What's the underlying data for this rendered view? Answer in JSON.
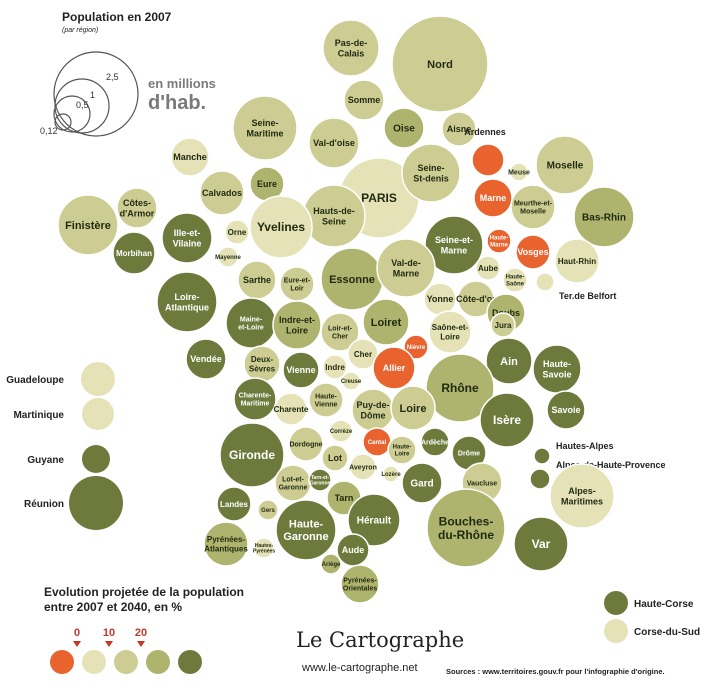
{
  "header": {
    "title": "Population en 2007",
    "subtitle": "(par région)"
  },
  "scale_legend": {
    "unit_line1": "en millions",
    "unit_line2": "d'hab.",
    "values": [
      "0,12",
      "0,5",
      "1",
      "2,5"
    ]
  },
  "evolution_legend": {
    "title_line1": "Evolution projetée de la population",
    "title_line2": "entre 2007 et 2040, en %",
    "ticks": [
      "0",
      "10",
      "20"
    ]
  },
  "corsica_legend": [
    "Haute-Corse",
    "Corse-du-Sud"
  ],
  "outre_mer": [
    "Guadeloupe",
    "Martinique",
    "Guyane",
    "Réunion"
  ],
  "logo": {
    "name": "Le Cartographe",
    "url": "www.le-cartographe.net"
  },
  "sources": "Sources : www.territoires.gouv.fr pour l'infographie d'origine.",
  "colors": {
    "decline": "#e8632e",
    "class1": "#e4e2b6",
    "class2": "#cdcc93",
    "class3": "#aeb36e",
    "class4": "#6e7a3c"
  },
  "departements": [
    {
      "label": "Pas-de-\nCalais",
      "class": "class2"
    },
    {
      "label": "Nord",
      "class": "class2"
    },
    {
      "label": "Somme",
      "class": "class2"
    },
    {
      "label": "Oise",
      "class": "class3"
    },
    {
      "label": "Aisne",
      "class": "class2"
    },
    {
      "label": "Ardennes",
      "class": "decline"
    },
    {
      "label": "Seine-\nMaritime",
      "class": "class2"
    },
    {
      "label": "Val-d'oise",
      "class": "class2"
    },
    {
      "label": "PARIS",
      "class": "class1"
    },
    {
      "label": "Seine-\nSt-denis",
      "class": "class2"
    },
    {
      "label": "Manche",
      "class": "class1"
    },
    {
      "label": "Calvados",
      "class": "class2"
    },
    {
      "label": "Eure",
      "class": "class3"
    },
    {
      "label": "Marne",
      "class": "decline"
    },
    {
      "label": "Meuse",
      "class": "class1"
    },
    {
      "label": "Moselle",
      "class": "class2"
    },
    {
      "label": "Meurthe-et-\nMoselle",
      "class": "class2"
    },
    {
      "label": "Bas-Rhin",
      "class": "class3"
    },
    {
      "label": "Côtes-\nd'Armor",
      "class": "class2"
    },
    {
      "label": "Finistère",
      "class": "class2"
    },
    {
      "label": "Hauts-de-\nSeine",
      "class": "class2"
    },
    {
      "label": "Yvelines",
      "class": "class1"
    },
    {
      "label": "Ille-et-\nVilaine",
      "class": "class4"
    },
    {
      "label": "Orne",
      "class": "class1"
    },
    {
      "label": "Morbihan",
      "class": "class4"
    },
    {
      "label": "Seine-et-\nMarne",
      "class": "class4"
    },
    {
      "label": "Haute-\nMarne",
      "class": "decline"
    },
    {
      "label": "Vosges",
      "class": "decline"
    },
    {
      "label": "Haut-Rhin",
      "class": "class1"
    },
    {
      "label": "Mayenne",
      "class": "class1"
    },
    {
      "label": "Essonne",
      "class": "class3"
    },
    {
      "label": "Val-de-\nMarne",
      "class": "class2"
    },
    {
      "label": "Aube",
      "class": "class1"
    },
    {
      "label": "Haute-\nSaône",
      "class": "class1"
    },
    {
      "label": "Sarthe",
      "class": "class2"
    },
    {
      "label": "Eure-et-\nLoir",
      "class": "class2"
    },
    {
      "label": "Ter.de Belfort",
      "class": "class1"
    },
    {
      "label": "Loire-\nAtlantique",
      "class": "class4"
    },
    {
      "label": "Maine-\net-Loire",
      "class": "class4"
    },
    {
      "label": "Indre-et-\nLoire",
      "class": "class3"
    },
    {
      "label": "Loir-et-\nCher",
      "class": "class2"
    },
    {
      "label": "Loiret",
      "class": "class3"
    },
    {
      "label": "Yonne",
      "class": "class1"
    },
    {
      "label": "Côte-d'or",
      "class": "class2"
    },
    {
      "label": "Doubs",
      "class": "class3"
    },
    {
      "label": "Saône-et-\nLoire",
      "class": "class1"
    },
    {
      "label": "Jura",
      "class": "class2"
    },
    {
      "label": "Vendée",
      "class": "class4"
    },
    {
      "label": "Deux-\nSèvres",
      "class": "class2"
    },
    {
      "label": "Vienne",
      "class": "class4"
    },
    {
      "label": "Indre",
      "class": "class1"
    },
    {
      "label": "Cher",
      "class": "class1"
    },
    {
      "label": "Nièvre",
      "class": "decline"
    },
    {
      "label": "Allier",
      "class": "decline"
    },
    {
      "label": "Ain",
      "class": "class4"
    },
    {
      "label": "Haute-\nSavoie",
      "class": "class4"
    },
    {
      "label": "Creuse",
      "class": "class1"
    },
    {
      "label": "Rhône",
      "class": "class3"
    },
    {
      "label": "Charente-\nMaritime",
      "class": "class4"
    },
    {
      "label": "Charente",
      "class": "class1"
    },
    {
      "label": "Haute-\nVienne",
      "class": "class2"
    },
    {
      "label": "Puy-de-\nDôme",
      "class": "class2"
    },
    {
      "label": "Loire",
      "class": "class2"
    },
    {
      "label": "Isère",
      "class": "class4"
    },
    {
      "label": "Savoie",
      "class": "class4"
    },
    {
      "label": "Corrèze",
      "class": "class1"
    },
    {
      "label": "Gironde",
      "class": "class4"
    },
    {
      "label": "Dordogne",
      "class": "class2"
    },
    {
      "label": "Cantal",
      "class": "decline"
    },
    {
      "label": "Haute-\nLoire",
      "class": "class2"
    },
    {
      "label": "Ardèche",
      "class": "class4"
    },
    {
      "label": "Drôme",
      "class": "class4"
    },
    {
      "label": "Hautes-Alpes",
      "class": "class4"
    },
    {
      "label": "Alpes-de-Haute-Provence",
      "class": "class4"
    },
    {
      "label": "Lot",
      "class": "class2"
    },
    {
      "label": "Aveyron",
      "class": "class1"
    },
    {
      "label": "Lozère",
      "class": "class1"
    },
    {
      "label": "Gard",
      "class": "class4"
    },
    {
      "label": "Vaucluse",
      "class": "class2"
    },
    {
      "label": "Lot-et-\nGaronne",
      "class": "class2"
    },
    {
      "label": "Tarn-et-\nGaronne",
      "class": "class4"
    },
    {
      "label": "Landes",
      "class": "class4"
    },
    {
      "label": "Gers",
      "class": "class2"
    },
    {
      "label": "Tarn",
      "class": "class3"
    },
    {
      "label": "Hérault",
      "class": "class4"
    },
    {
      "label": "Bouches-\ndu-Rhône",
      "class": "class3"
    },
    {
      "label": "Var",
      "class": "class4"
    },
    {
      "label": "Alpes-\nMaritimes",
      "class": "class1"
    },
    {
      "label": "Haute-\nGaronne",
      "class": "class4"
    },
    {
      "label": "Pyrénées-\nAtlantiques",
      "class": "class3"
    },
    {
      "label": "Hautes-\nPyrénées",
      "class": "class1"
    },
    {
      "label": "Aude",
      "class": "class4"
    },
    {
      "label": "Ariège",
      "class": "class3"
    },
    {
      "label": "Pyrénées-\nOrientales",
      "class": "class3"
    }
  ]
}
